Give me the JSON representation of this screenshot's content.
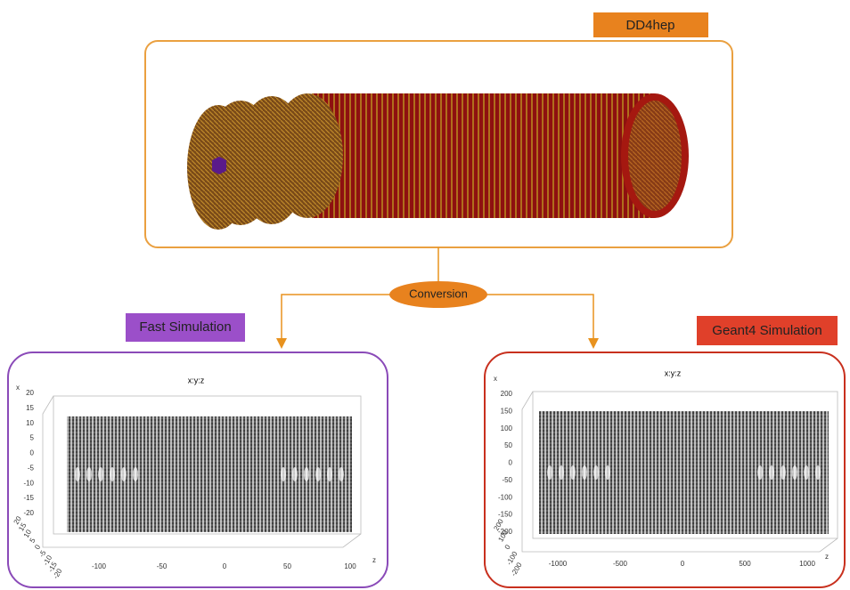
{
  "top": {
    "label": "DD4hep"
  },
  "connector": {
    "label": "Conversion"
  },
  "panels": [
    {
      "label": "Fast Simulation",
      "plot_title": "x:y:z",
      "x_axis_label": "x",
      "z_axis_label": "z",
      "x_ticks": [
        "20",
        "15",
        "10",
        "5",
        "0",
        "-5",
        "-10",
        "-15",
        "-20"
      ],
      "y_ticks": [
        "20",
        "15",
        "10",
        "5",
        "0",
        "-5",
        "-10",
        "-15",
        "-20"
      ],
      "z_ticks": [
        "-100",
        "-50",
        "0",
        "50",
        "100"
      ]
    },
    {
      "label": "Geant4 Simulation",
      "plot_title": "x:y:z",
      "x_axis_label": "x",
      "z_axis_label": "z",
      "x_ticks": [
        "200",
        "150",
        "100",
        "50",
        "0",
        "-50",
        "-100",
        "-150",
        "-200"
      ],
      "y_ticks": [
        "200",
        "100",
        "0",
        "-100",
        "-200"
      ],
      "z_ticks": [
        "-1000",
        "-500",
        "0",
        "500",
        "1000"
      ]
    }
  ]
}
